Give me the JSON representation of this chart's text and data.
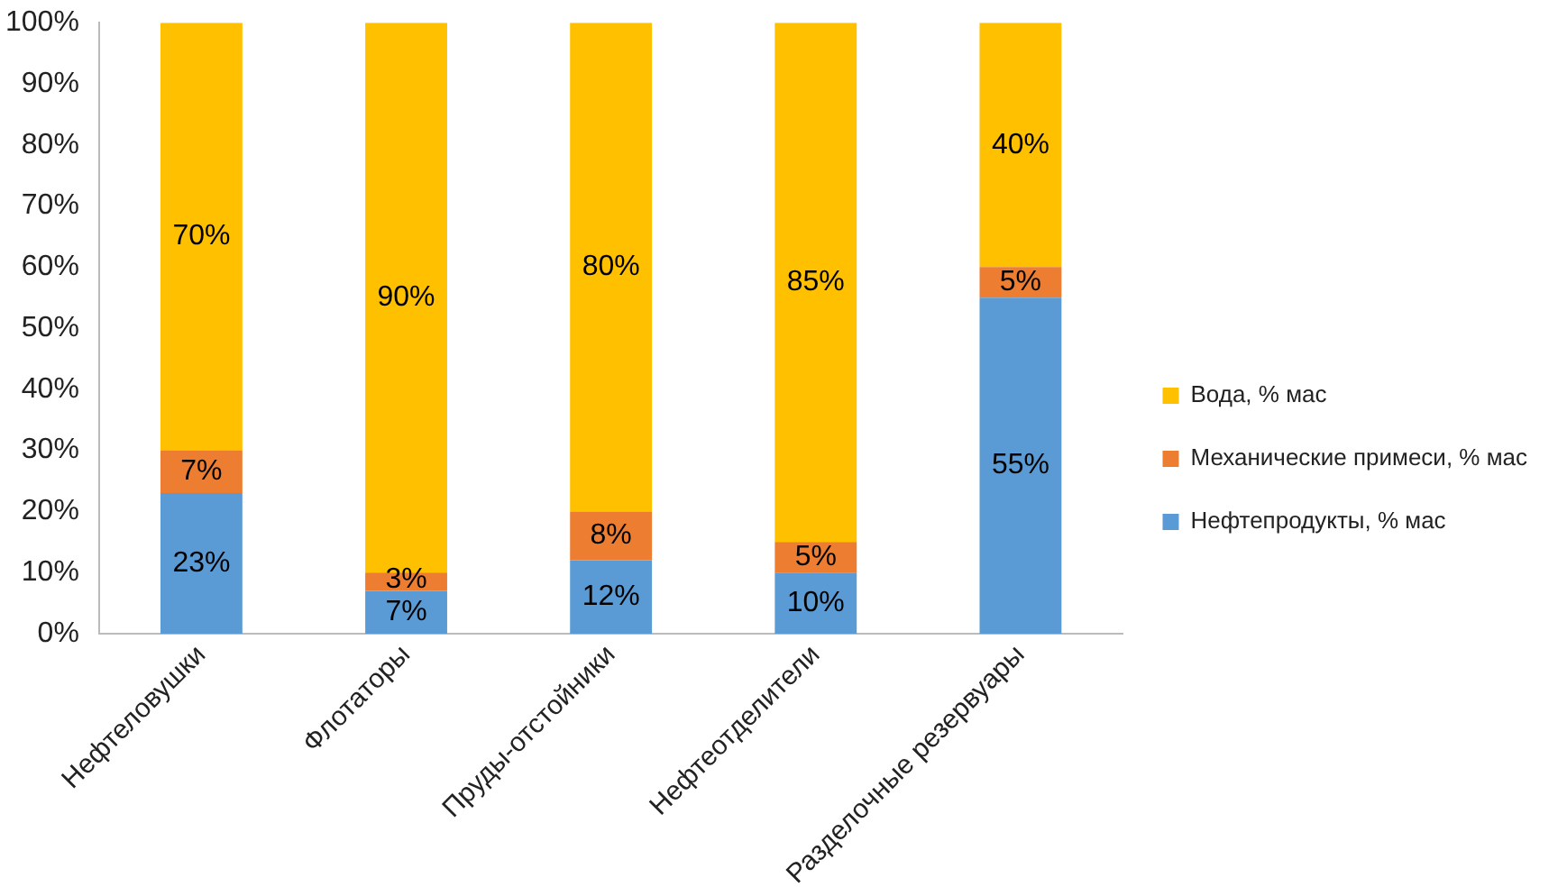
{
  "chart_data": {
    "type": "bar",
    "stacked": true,
    "categories": [
      "Нефтеловушки",
      "Флотаторы",
      "Пруды-отстойники",
      "Нефтеотделители",
      "Разделочные резервуары"
    ],
    "series": [
      {
        "name": "Нефтепродукты, % мас",
        "color": "#5b9bd5",
        "values": [
          23,
          7,
          12,
          10,
          55
        ],
        "value_labels": [
          "23%",
          "7%",
          "12%",
          "10%",
          "55%"
        ]
      },
      {
        "name": "Механические примеси, % мас",
        "color": "#ed7d31",
        "values": [
          7,
          3,
          8,
          5,
          5
        ],
        "value_labels": [
          "7%",
          "3%",
          "8%",
          "5%",
          "5%"
        ]
      },
      {
        "name": "Вода, % мас",
        "color": "#ffc000",
        "values": [
          70,
          90,
          80,
          85,
          40
        ],
        "value_labels": [
          "70%",
          "90%",
          "80%",
          "85%",
          "40%"
        ]
      }
    ],
    "ylim": [
      0,
      100
    ],
    "yticks": [
      {
        "value": 0,
        "label": "0%"
      },
      {
        "value": 10,
        "label": "10%"
      },
      {
        "value": 20,
        "label": "20%"
      },
      {
        "value": 30,
        "label": "30%"
      },
      {
        "value": 40,
        "label": "40%"
      },
      {
        "value": 50,
        "label": "50%"
      },
      {
        "value": 60,
        "label": "60%"
      },
      {
        "value": 70,
        "label": "70%"
      },
      {
        "value": 80,
        "label": "80%"
      },
      {
        "value": 90,
        "label": "90%"
      },
      {
        "value": 100,
        "label": "100%"
      }
    ],
    "grid": false,
    "legend": "right"
  }
}
